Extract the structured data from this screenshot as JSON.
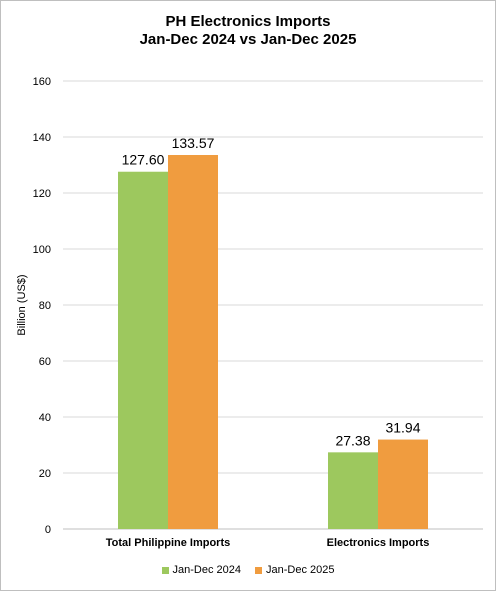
{
  "title_line1": "PH Electronics Imports",
  "title_line2": "Jan-Dec 2024 vs Jan-Dec 2025",
  "chart_data": {
    "type": "bar",
    "title": "PH Electronics Imports Jan-Dec 2024 vs Jan-Dec 2025",
    "categories": [
      "Total Philippine Imports",
      "Electronics Imports"
    ],
    "series": [
      {
        "name": "Jan-Dec 2024",
        "values": [
          127.6,
          27.38
        ],
        "labels": [
          "127.60",
          "27.38"
        ],
        "color": "#9dc85e"
      },
      {
        "name": "Jan-Dec 2025",
        "values": [
          133.57,
          31.94
        ],
        "labels": [
          "133.57",
          "31.94"
        ],
        "color": "#f09c3f"
      }
    ],
    "ylabel": "Billion (US$)",
    "xlabel": "",
    "ylim": [
      0,
      160
    ],
    "yticks": [
      0,
      20,
      40,
      60,
      80,
      100,
      120,
      140,
      160
    ],
    "grid": true,
    "legend": "bottom"
  }
}
